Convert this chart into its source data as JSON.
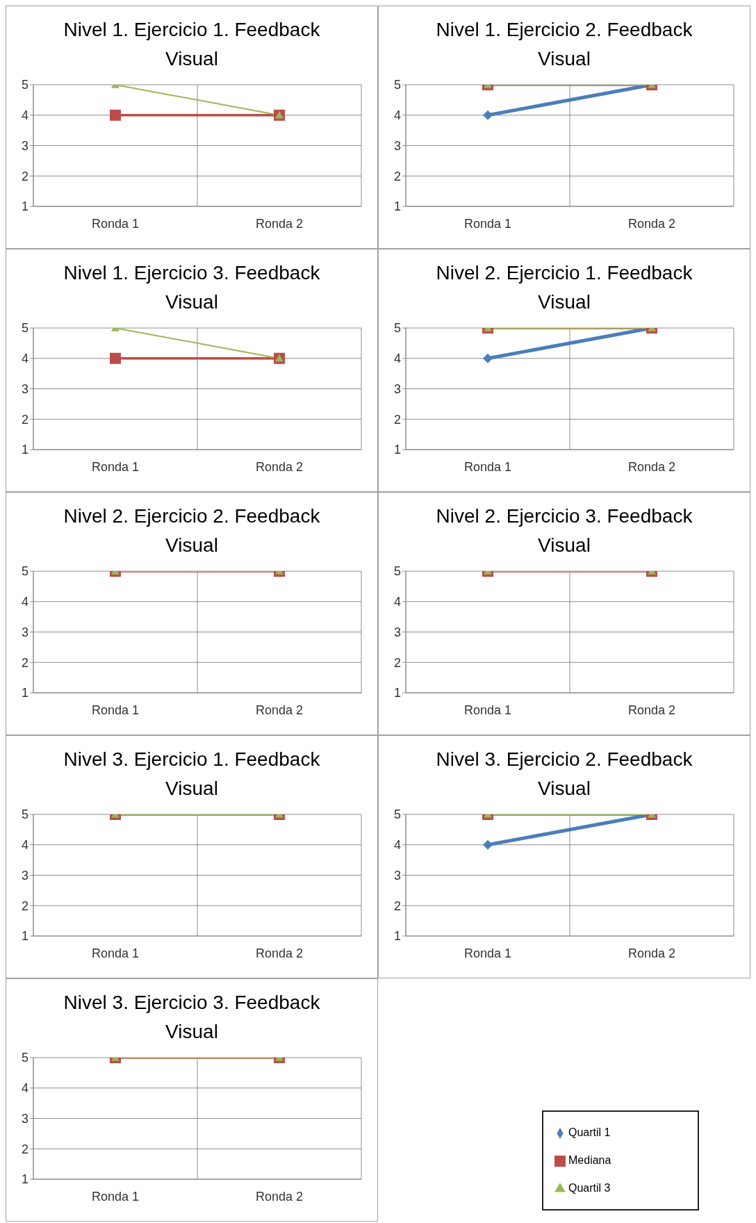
{
  "chart_data": [
    {
      "type": "line",
      "title": "Nivel 1. Ejercicio 1. Feedback Visual",
      "categories": [
        "Ronda 1",
        "Ronda 2"
      ],
      "ylim": [
        1,
        5
      ],
      "yticks": [
        1,
        2,
        3,
        4,
        5
      ],
      "grid": true,
      "series": [
        {
          "color": "#4a7ebb",
          "marker": "diamond",
          "values": [
            null,
            null
          ]
        },
        {
          "color": "#be4b48",
          "marker": "square",
          "values": [
            4,
            4
          ]
        },
        {
          "color": "#98b954",
          "marker": "triangle",
          "values": [
            5,
            4
          ]
        }
      ]
    },
    {
      "type": "line",
      "title": "Nivel 1. Ejercicio 2. Feedback Visual",
      "categories": [
        "Ronda 1",
        "Ronda 2"
      ],
      "ylim": [
        1,
        5
      ],
      "yticks": [
        1,
        2,
        3,
        4,
        5
      ],
      "grid": true,
      "series": [
        {
          "color": "#4a7ebb",
          "marker": "diamond",
          "values": [
            4,
            5
          ]
        },
        {
          "color": "#be4b48",
          "marker": "square",
          "values": [
            5,
            5
          ]
        },
        {
          "color": "#98b954",
          "marker": "triangle",
          "values": [
            5,
            5
          ]
        }
      ]
    },
    {
      "type": "line",
      "title": "Nivel 1. Ejercicio 3. Feedback Visual",
      "categories": [
        "Ronda 1",
        "Ronda 2"
      ],
      "ylim": [
        1,
        5
      ],
      "yticks": [
        1,
        2,
        3,
        4,
        5
      ],
      "grid": true,
      "series": [
        {
          "color": "#4a7ebb",
          "marker": "diamond",
          "values": [
            null,
            null
          ]
        },
        {
          "color": "#be4b48",
          "marker": "square",
          "values": [
            4,
            4
          ]
        },
        {
          "color": "#98b954",
          "marker": "triangle",
          "values": [
            5,
            4
          ]
        }
      ]
    },
    {
      "type": "line",
      "title": "Nivel 2. Ejercicio 1. Feedback Visual",
      "categories": [
        "Ronda 1",
        "Ronda 2"
      ],
      "ylim": [
        1,
        5
      ],
      "yticks": [
        1,
        2,
        3,
        4,
        5
      ],
      "grid": true,
      "series": [
        {
          "color": "#4a7ebb",
          "marker": "diamond",
          "values": [
            4,
            5
          ]
        },
        {
          "color": "#be4b48",
          "marker": "square",
          "values": [
            5,
            5
          ]
        },
        {
          "color": "#98b954",
          "marker": "triangle",
          "values": [
            5,
            5
          ]
        }
      ]
    },
    {
      "type": "line",
      "title": "Nivel 2. Ejercicio 2. Feedback Visual",
      "categories": [
        "Ronda 1",
        "Ronda 2"
      ],
      "ylim": [
        1,
        5
      ],
      "yticks": [
        1,
        2,
        3,
        4,
        5
      ],
      "grid": true,
      "series": [
        {
          "color": "#4a7ebb",
          "marker": "diamond",
          "values": [
            null,
            null
          ]
        },
        {
          "color": "#be4b48",
          "marker": "square",
          "values": [
            5,
            5
          ]
        },
        {
          "color": "#98b954",
          "marker": "triangle",
          "values": [
            5,
            5
          ]
        }
      ]
    },
    {
      "type": "line",
      "title": "Nivel 2. Ejercicio 3. Feedback Visual",
      "categories": [
        "Ronda 1",
        "Ronda 2"
      ],
      "ylim": [
        1,
        5
      ],
      "yticks": [
        1,
        2,
        3,
        4,
        5
      ],
      "grid": true,
      "series": [
        {
          "color": "#4a7ebb",
          "marker": "diamond",
          "values": [
            null,
            null
          ]
        },
        {
          "color": "#be4b48",
          "marker": "square",
          "values": [
            5,
            5
          ]
        },
        {
          "color": "#98b954",
          "marker": "triangle",
          "values": [
            5,
            5
          ]
        }
      ]
    },
    {
      "type": "line",
      "title": "Nivel 3. Ejercicio 1. Feedback Visual",
      "categories": [
        "Ronda 1",
        "Ronda 2"
      ],
      "ylim": [
        1,
        5
      ],
      "yticks": [
        1,
        2,
        3,
        4,
        5
      ],
      "grid": true,
      "series": [
        {
          "color": "#4a7ebb",
          "marker": "diamond",
          "values": [
            null,
            null
          ]
        },
        {
          "color": "#be4b48",
          "marker": "square",
          "values": [
            5,
            5
          ]
        },
        {
          "color": "#98b954",
          "marker": "triangle",
          "values": [
            5,
            5
          ]
        }
      ]
    },
    {
      "type": "line",
      "title": "Nivel 3. Ejercicio 2. Feedback Visual",
      "categories": [
        "Ronda 1",
        "Ronda 2"
      ],
      "ylim": [
        1,
        5
      ],
      "yticks": [
        1,
        2,
        3,
        4,
        5
      ],
      "grid": true,
      "series": [
        {
          "color": "#4a7ebb",
          "marker": "diamond",
          "values": [
            4,
            5
          ]
        },
        {
          "color": "#be4b48",
          "marker": "square",
          "values": [
            5,
            5
          ]
        },
        {
          "color": "#98b954",
          "marker": "triangle",
          "values": [
            5,
            5
          ]
        }
      ]
    },
    {
      "type": "line",
      "title": "Nivel 3. Ejercicio 3. Feedback Visual",
      "categories": [
        "Ronda 1",
        "Ronda 2"
      ],
      "ylim": [
        1,
        5
      ],
      "yticks": [
        1,
        2,
        3,
        4,
        5
      ],
      "grid": true,
      "legend": "right",
      "series": [
        {
          "name": "Quartil 1",
          "color": "#4a7ebb",
          "marker": "diamond",
          "values": [
            null,
            null
          ]
        },
        {
          "name": "Mediana",
          "color": "#be4b48",
          "marker": "square",
          "values": [
            5,
            5
          ]
        },
        {
          "name": "Quartil 3",
          "color": "#98b954",
          "marker": "triangle",
          "values": [
            5,
            5
          ]
        }
      ]
    }
  ]
}
